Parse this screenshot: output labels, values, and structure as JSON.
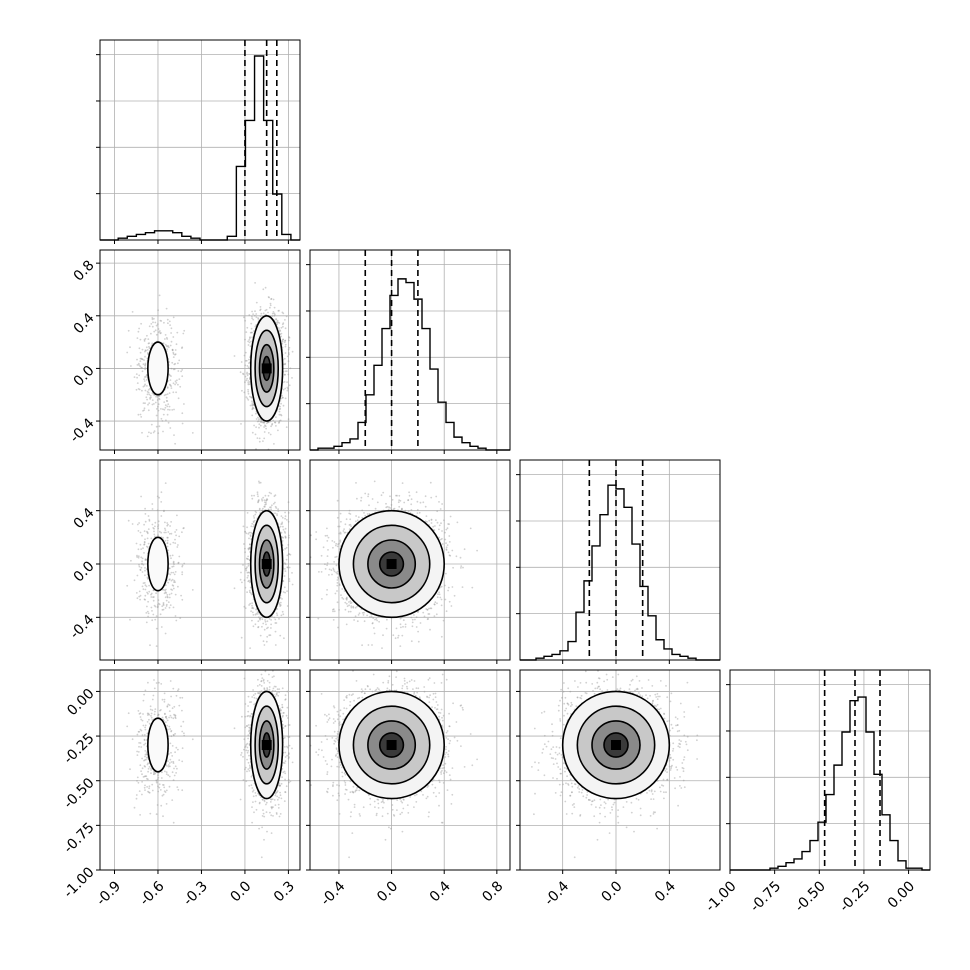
{
  "chart_data": {
    "type": "scatter",
    "kind": "corner",
    "grid": true,
    "parameters": 4,
    "dists": [
      {
        "mode": "bimodal",
        "mu": 0.15,
        "sigma": 0.055,
        "mu2": -0.6,
        "sigma2": 0.07,
        "w2": 0.17
      },
      {
        "mode": "normal",
        "mu": 0.0,
        "sigma": 0.2
      },
      {
        "mode": "normal",
        "mu": 0.0,
        "sigma": 0.2
      },
      {
        "mode": "normal",
        "mu": -0.3,
        "sigma": 0.15
      }
    ],
    "ranges": [
      [
        -1.0,
        0.38
      ],
      [
        -0.62,
        0.9
      ],
      [
        -0.72,
        0.78
      ],
      [
        -1.0,
        0.12
      ]
    ],
    "quantiles": [
      [
        0.0,
        0.15,
        0.22
      ],
      [
        -0.2,
        0.0,
        0.2
      ],
      [
        -0.2,
        0.0,
        0.2
      ],
      [
        -0.47,
        -0.3,
        -0.16
      ]
    ],
    "hist_heights": [
      [
        0.0,
        0.0,
        0.01,
        0.02,
        0.03,
        0.04,
        0.05,
        0.05,
        0.04,
        0.02,
        0.01,
        0.0,
        0.0,
        0.0,
        0.02,
        0.4,
        0.65,
        1.0,
        0.65,
        0.25,
        0.03,
        0.0
      ],
      [
        0.0,
        0.01,
        0.01,
        0.02,
        0.04,
        0.06,
        0.15,
        0.3,
        0.46,
        0.66,
        0.84,
        0.93,
        0.91,
        0.82,
        0.66,
        0.44,
        0.26,
        0.15,
        0.07,
        0.04,
        0.02,
        0.01,
        0.0,
        0.0,
        0.0
      ],
      [
        0.0,
        0.0,
        0.01,
        0.02,
        0.03,
        0.05,
        0.1,
        0.26,
        0.43,
        0.62,
        0.79,
        0.95,
        0.93,
        0.83,
        0.63,
        0.4,
        0.24,
        0.11,
        0.06,
        0.03,
        0.02,
        0.01,
        0.0,
        0.0,
        0.0
      ],
      [
        0.0,
        0.0,
        0.0,
        0.0,
        0.0,
        0.01,
        0.02,
        0.04,
        0.06,
        0.1,
        0.16,
        0.26,
        0.41,
        0.57,
        0.75,
        0.92,
        0.94,
        0.75,
        0.52,
        0.3,
        0.16,
        0.05,
        0.01,
        0.01,
        0.0
      ]
    ],
    "x_ticks": [
      [
        "-0.9",
        "-0.6",
        "-0.3",
        "0.0",
        "0.3"
      ],
      [
        "-0.4",
        "0.0",
        "0.4",
        "0.8"
      ],
      [
        "-0.4",
        "0.0",
        "0.4"
      ],
      [
        "-1.00",
        "-0.75",
        "-0.50",
        "-0.25",
        "0.00"
      ]
    ],
    "x_tick_values": [
      [
        -0.9,
        -0.6,
        -0.3,
        0.0,
        0.3
      ],
      [
        -0.4,
        0.0,
        0.4,
        0.8
      ],
      [
        -0.4,
        0.0,
        0.4
      ],
      [
        -1.0,
        -0.75,
        -0.5,
        -0.25,
        0.0
      ]
    ],
    "y_ticks": [
      [],
      [
        "-0.4",
        "0.0",
        "0.4",
        "0.8"
      ],
      [
        "-0.4",
        "0.0",
        "0.4"
      ],
      [
        "-1.00",
        "-0.75",
        "-0.50",
        "-0.25",
        "0.00"
      ]
    ],
    "y_tick_values": [
      [],
      [
        -0.4,
        0.0,
        0.4,
        0.8
      ],
      [
        -0.4,
        0.0,
        0.4
      ],
      [
        -1.0,
        -0.75,
        -0.5,
        -0.25,
        0.0
      ]
    ],
    "hist_y_ticks": 4,
    "colors": {
      "points": "#9a9a9a",
      "line": "#000000",
      "grid": "#b0b0b0",
      "frame": "#000000"
    }
  }
}
